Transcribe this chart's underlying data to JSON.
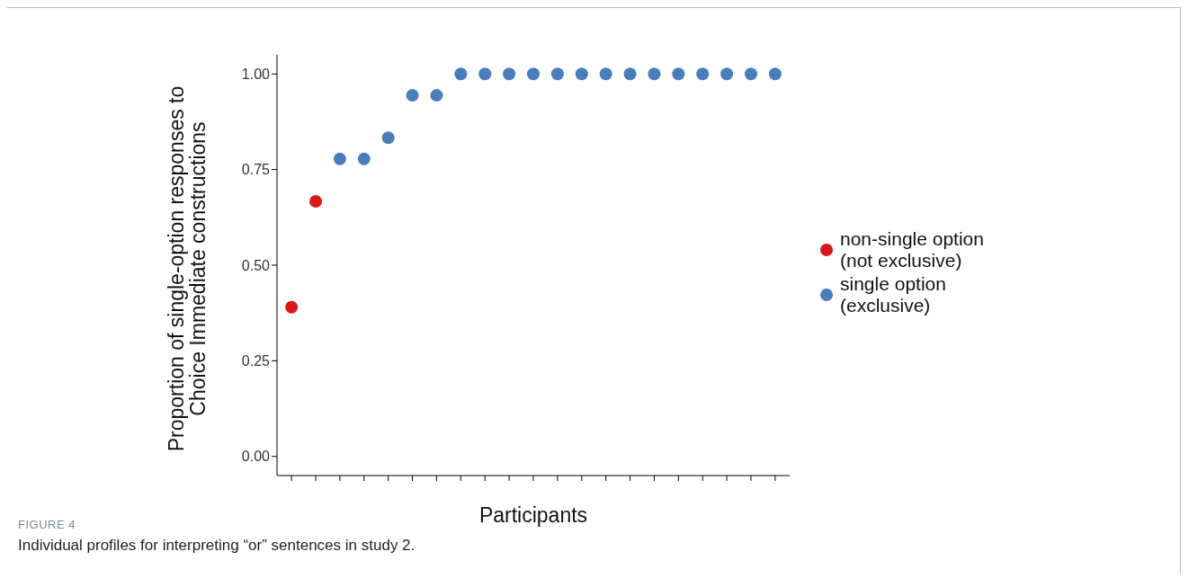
{
  "chart_data": {
    "type": "scatter",
    "xlabel": "Participants",
    "ylabel": "Proportion of single-option responses to Choice Immediate constructions",
    "categories": [
      null,
      null,
      null,
      null,
      null,
      null,
      null,
      null,
      null,
      null,
      null,
      null,
      null,
      null,
      null,
      null,
      null,
      null,
      null,
      null,
      null
    ],
    "series": [
      {
        "name": "non-single option (not exclusive)",
        "color": "#d7191c",
        "values": [
          0.39,
          0.667,
          null,
          null,
          null,
          null,
          null,
          null,
          null,
          null,
          null,
          null,
          null,
          null,
          null,
          null,
          null,
          null,
          null,
          null,
          null
        ]
      },
      {
        "name": "single option (exclusive)",
        "color": "#4a7ebb",
        "values": [
          null,
          null,
          0.778,
          0.778,
          0.833,
          0.944,
          0.944,
          1,
          1,
          1,
          1,
          1,
          1,
          1,
          1,
          1,
          1,
          1,
          1,
          1,
          1
        ]
      }
    ],
    "ylim": [
      -0.05,
      1.05
    ],
    "yticks": [
      {
        "value": 0,
        "label": "0.00"
      },
      {
        "value": 0.25,
        "label": "0.25"
      },
      {
        "value": 0.5,
        "label": "0.50"
      },
      {
        "value": 0.75,
        "label": "0.75"
      },
      {
        "value": 1,
        "label": "1.00"
      }
    ],
    "marker": "circle",
    "grid": false,
    "legend": "right",
    "annotations": [
      "FIGURE 4",
      "Individual profiles for interpreting “or” sentences in study 2."
    ]
  }
}
